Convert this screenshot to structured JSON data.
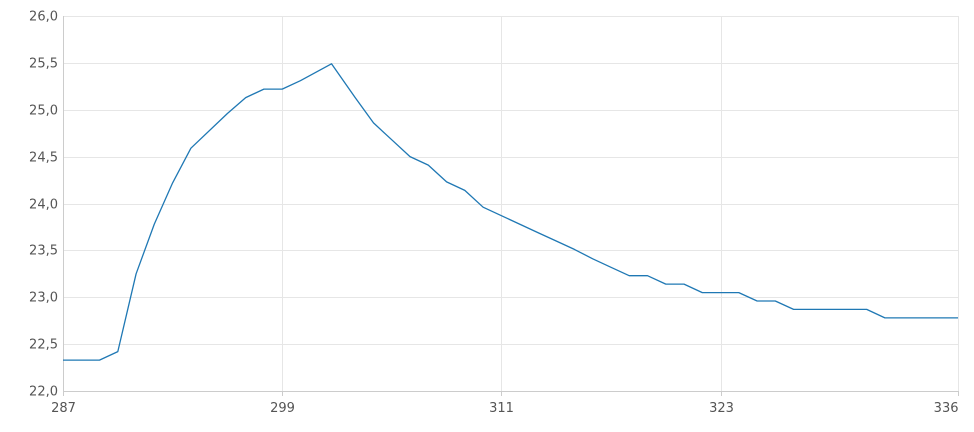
{
  "chart_data": {
    "type": "line",
    "title": "",
    "xlabel": "",
    "ylabel": "",
    "x_ticks": [
      "287",
      "299",
      "311",
      "323",
      "336"
    ],
    "y_ticks": [
      "22,0",
      "22,5",
      "23,0",
      "23,5",
      "24,0",
      "24,5",
      "25,0",
      "25,5",
      "26,0"
    ],
    "xlim": [
      287,
      336
    ],
    "ylim": [
      22.0,
      26.0
    ],
    "grid": true,
    "legend": "none",
    "series_color": "#1f78b4",
    "series": [
      {
        "x": [
          287,
          289,
          290,
          291,
          292,
          293,
          294,
          296,
          297,
          298,
          299,
          300,
          301.7,
          303,
          304,
          305,
          306,
          307,
          308,
          309,
          310,
          311,
          312,
          313,
          314,
          315,
          316,
          317,
          318,
          319,
          320,
          321,
          322,
          323,
          324,
          325,
          326,
          327,
          328,
          329,
          330,
          331,
          332,
          333,
          334,
          335,
          336
        ],
        "y": [
          22.33,
          22.33,
          22.42,
          23.25,
          23.78,
          24.22,
          24.59,
          24.96,
          25.13,
          25.22,
          25.22,
          25.31,
          25.49,
          25.13,
          24.86,
          24.68,
          24.5,
          24.41,
          24.23,
          24.14,
          23.96,
          23.87,
          23.78,
          23.69,
          23.6,
          23.51,
          23.41,
          23.32,
          23.23,
          23.23,
          23.14,
          23.14,
          23.05,
          23.05,
          23.05,
          22.96,
          22.96,
          22.87,
          22.87,
          22.87,
          22.87,
          22.87,
          22.78,
          22.78,
          22.78,
          22.78,
          22.78
        ]
      }
    ]
  }
}
